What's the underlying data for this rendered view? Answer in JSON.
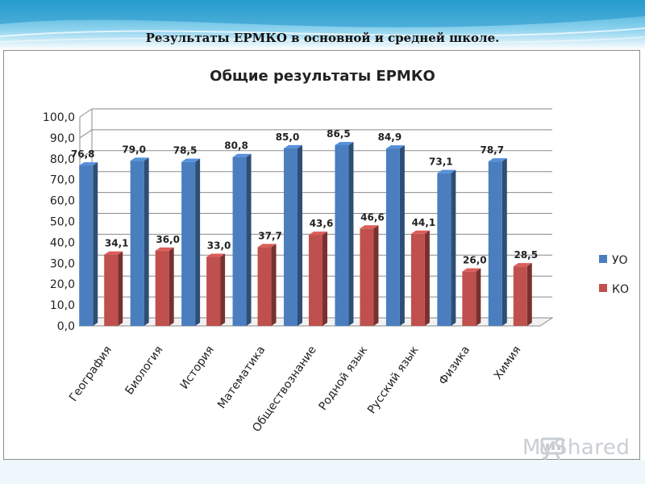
{
  "slide": {
    "title": "Результаты ЕРМКО в основной и средней школе."
  },
  "watermark": {
    "text": "MyShared"
  },
  "colors": {
    "uo": "#4a7ebf",
    "ko": "#c0504d"
  },
  "chart_data": {
    "type": "bar",
    "title": "Общие результаты ЕРМКО",
    "xlabel": "",
    "ylabel": "",
    "ylim": [
      0,
      100
    ],
    "ytick_labels": [
      "0,0",
      "10,0",
      "20,0",
      "30,0",
      "40,0",
      "50,0",
      "60,0",
      "70,0",
      "80,0",
      "90,0",
      "100,0"
    ],
    "grid": true,
    "legend_position": "right",
    "categories": [
      "География",
      "Биология",
      "История",
      "Математика",
      "Обществознание",
      "Родной язык",
      "Русский язык",
      "Физика",
      "Химия"
    ],
    "series": [
      {
        "name": "УО",
        "values": [
          76.8,
          79.0,
          78.5,
          80.8,
          85.0,
          86.5,
          84.9,
          73.1,
          78.7
        ],
        "labels": [
          "76,8",
          "79,0",
          "78,5",
          "80,8",
          "85,0",
          "86,5",
          "84,9",
          "73,1",
          "78,7"
        ]
      },
      {
        "name": "КО",
        "values": [
          34.1,
          36.0,
          33.0,
          37.7,
          43.6,
          46.6,
          44.1,
          26.0,
          28.5
        ],
        "labels": [
          "34,1",
          "36,0",
          "33,0",
          "37,7",
          "43,6",
          "46,6",
          "44,1",
          "26,0",
          "28,5"
        ]
      }
    ]
  }
}
